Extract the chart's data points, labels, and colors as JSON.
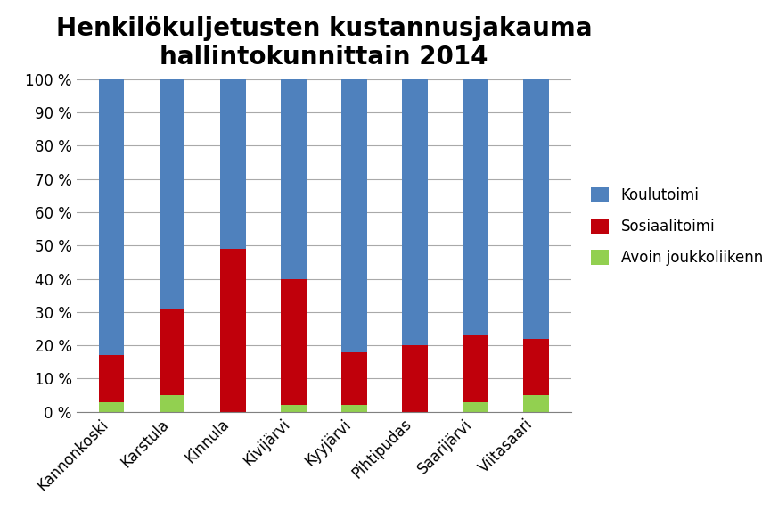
{
  "title": "Henkilökuljetusten kustannusjakauma\nhallintokunnittain 2014",
  "categories": [
    "Kannonkoski",
    "Karstula",
    "Kinnula",
    "Kivijärvi",
    "Kyyjärvi",
    "Pihtipudas",
    "Saarijärvi",
    "Viitasaari"
  ],
  "avoin_joukkoliikenne": [
    3,
    5,
    0,
    2,
    2,
    0,
    3,
    5
  ],
  "sosiaalitoimi": [
    14,
    26,
    49,
    38,
    16,
    20,
    20,
    17
  ],
  "koulutoimi": [
    83,
    69,
    51,
    60,
    82,
    80,
    77,
    78
  ],
  "color_avoin": "#92d050",
  "color_sosiaali": "#c0000b",
  "color_koulu": "#4f81bd",
  "legend_labels": [
    "Koulutoimi",
    "Sosiaalitoimi",
    "Avoin joukkoliikenne"
  ],
  "ylabel_ticks": [
    "0 %",
    "10 %",
    "20 %",
    "30 %",
    "40 %",
    "50 %",
    "60 %",
    "70 %",
    "80 %",
    "90 %",
    "100 %"
  ],
  "background_color": "#ffffff",
  "title_fontsize": 20,
  "bar_width": 0.42
}
